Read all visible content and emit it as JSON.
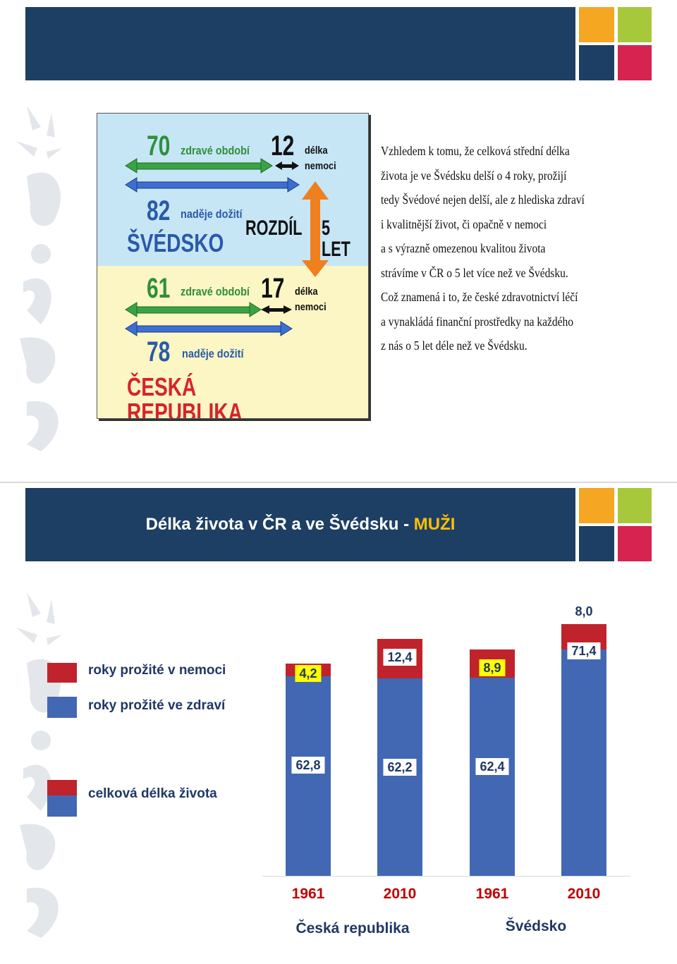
{
  "slide1": {
    "infographic": {
      "sweden": {
        "healthy_years": "70",
        "healthy_label": "zdravé období",
        "sick_years": "12",
        "sick_label_line1": "délka",
        "sick_label_line2": "nemoci",
        "life_expectancy": "82",
        "life_label": "naděje dožití",
        "country": "ŠVÉDSKO"
      },
      "difference_text": "ROZDÍL",
      "difference_value": "5 LET",
      "czech": {
        "healthy_years": "61",
        "healthy_label": "zdravé období",
        "sick_years": "17",
        "sick_label_line1": "délka",
        "sick_label_line2": "nemoci",
        "life_expectancy": "78",
        "life_label": "naděje dožití",
        "country": "ČESKÁ REPUBLIKA"
      }
    },
    "paragraph_lines": [
      "Vzhledem k tomu, že celková střední délka",
      "života je ve Švédsku delší o 4 roky, prožijí",
      "tedy Švédové nejen delší, ale z hlediska zdraví",
      "i kvalitnější život, či opačně v nemoci",
      "a s výrazně omezenou kvalitou života",
      "strávíme v ČR o 5 let více než ve Švédsku.",
      "Což znamená i to, že české zdravotnictví léčí",
      "a vynakládá finanční prostředky na každého",
      "z nás o 5 let déle než ve Švédsku."
    ]
  },
  "slide2": {
    "title_main": "Délka života v ČR a ve Švédsku -",
    "title_accent": "MUŽI",
    "legend": {
      "sick": "roky prožité v nemoci",
      "healthy": "roky prožité ve zdraví",
      "total": "celková délka života"
    }
  },
  "colors": {
    "header": "#1d3f64",
    "sq_orange": "#f5a623",
    "sq_green": "#a8c83c",
    "sq_red": "#d7234f",
    "healthy": "#4268b4",
    "sick": "#c0232b",
    "year": "#c00000",
    "text": "#1f3864"
  },
  "chart_data": {
    "type": "bar",
    "stacked": true,
    "categories": [
      "1961",
      "2010",
      "1961",
      "2010"
    ],
    "groups": [
      {
        "name": "Česká republika",
        "categories": [
          "1961",
          "2010"
        ]
      },
      {
        "name": "Švédsko",
        "categories": [
          "1961",
          "2010"
        ]
      }
    ],
    "series": [
      {
        "name": "roky prožité ve zdraví",
        "values": [
          62.8,
          62.2,
          62.4,
          71.4
        ],
        "labels": [
          "62,8",
          "62,2",
          "62,4",
          "71,4"
        ]
      },
      {
        "name": "roky prožité v nemoci",
        "values": [
          4.2,
          12.4,
          8.9,
          8.0
        ],
        "labels": [
          "4,2",
          "12,4",
          "8,9",
          "8,0"
        ]
      }
    ],
    "ylim": [
      0,
      80
    ]
  }
}
